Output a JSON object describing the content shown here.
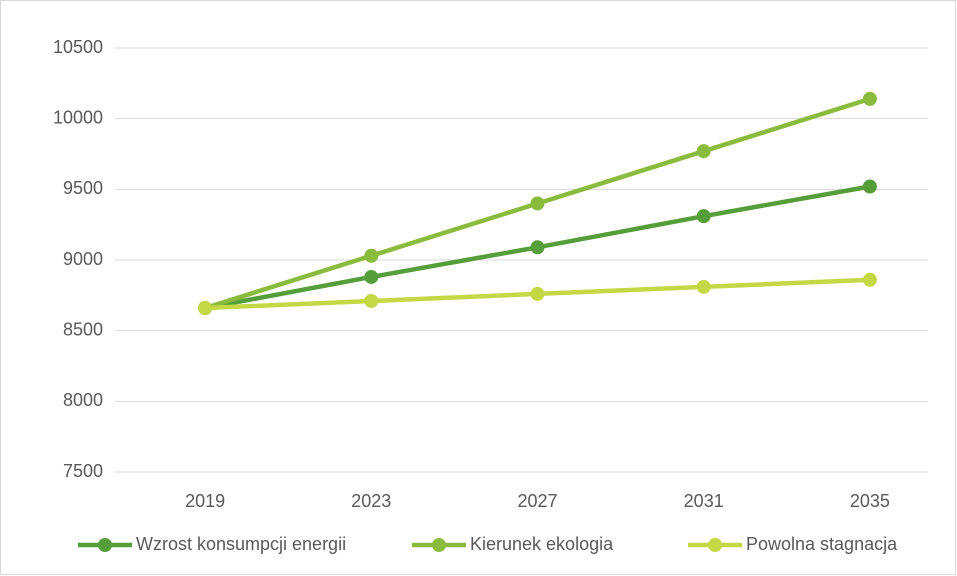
{
  "chart_data": {
    "type": "line",
    "categories": [
      "2019",
      "2023",
      "2027",
      "2031",
      "2035"
    ],
    "series": [
      {
        "name": "Wzrost konsumpcji energii",
        "color": "#559e3a",
        "values": [
          8660,
          8880,
          9090,
          9310,
          9520
        ]
      },
      {
        "name": "Kierunek ekologia",
        "color": "#8abb3c",
        "values": [
          8660,
          9030,
          9400,
          9770,
          10140
        ]
      },
      {
        "name": "Powolna stagnacja",
        "color": "#c4d845",
        "values": [
          8660,
          8710,
          8760,
          8810,
          8860
        ]
      }
    ],
    "ylim": [
      7500,
      10500
    ],
    "yticks": [
      7500,
      8000,
      8500,
      9000,
      9500,
      10000,
      10500
    ],
    "grid": true,
    "legend": "bottom"
  }
}
